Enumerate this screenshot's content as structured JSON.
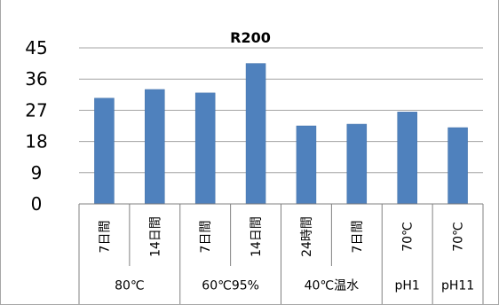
{
  "chart_data": {
    "type": "bar",
    "title": "R200",
    "xlabel": "",
    "ylabel": "",
    "ylim": [
      0,
      45
    ],
    "yticks": [
      "0",
      "9",
      "18",
      "27",
      "36",
      "45"
    ],
    "grid": true,
    "legend": "none",
    "categories": [
      "7日間",
      "14日間",
      "7日間",
      "14日間",
      "24時間",
      "7日間",
      "70℃",
      "70℃"
    ],
    "groups": [
      {
        "label": "80℃",
        "span": 2
      },
      {
        "label": "60℃95%",
        "span": 2
      },
      {
        "label": "40℃温水",
        "span": 2
      },
      {
        "label": "pH1",
        "span": 1
      },
      {
        "label": "pH11",
        "span": 1
      }
    ],
    "values": [
      30.5,
      33,
      32,
      40.5,
      22.5,
      23,
      26.5,
      22
    ],
    "colors": {
      "bar": "#4f81bd",
      "bar_edge": "#3f6fa8",
      "grid": "#a6a6a6",
      "axis": "#808080"
    }
  }
}
